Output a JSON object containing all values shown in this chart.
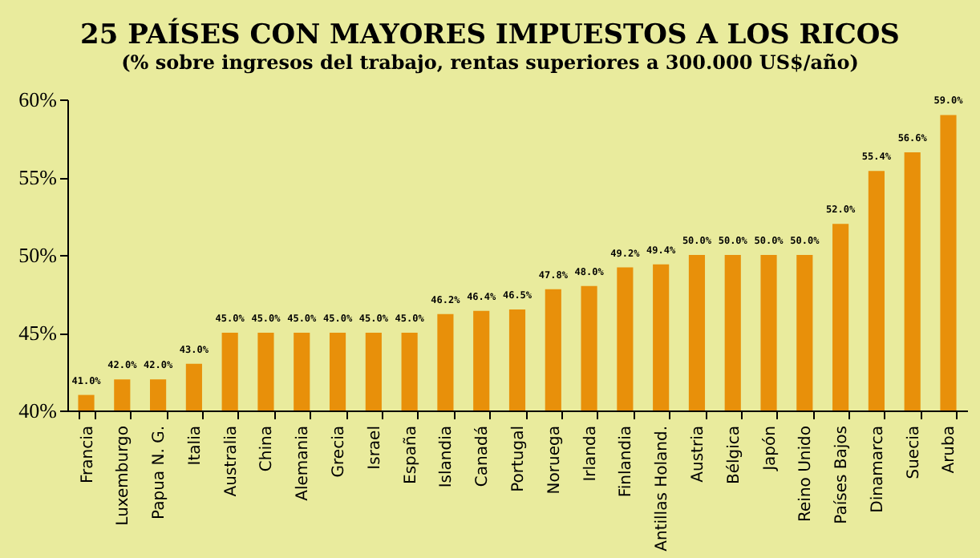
{
  "chart_data": {
    "type": "bar",
    "title": "25 PAÍSES CON MAYORES IMPUESTOS A LOS RICOS",
    "subtitle": "(% sobre ingresos del trabajo, rentas superiores a 300.000 US$/año)",
    "categories": [
      "Francia",
      "Luxemburgo",
      "Papua N. G.",
      "Italia",
      "Australia",
      "China",
      "Alemania",
      "Grecia",
      "Israel",
      "España",
      "Islandia",
      "Canadá",
      "Portugal",
      "Noruega",
      "Irlanda",
      "Finlandia",
      "Antillas Holand.",
      "Austria",
      "Bélgica",
      "Japón",
      "Reino Unido",
      "Países Bajos",
      "Dinamarca",
      "Suecia",
      "Aruba"
    ],
    "values": [
      41,
      42,
      42,
      43,
      45,
      45,
      45,
      45,
      45,
      45,
      46.2,
      46.4,
      46.5,
      47.8,
      48,
      49.2,
      49.4,
      50,
      50,
      50,
      50,
      52,
      55.4,
      56.6,
      59
    ],
    "value_labels": [
      "41.0%",
      "42.0%",
      "42.0%",
      "43.0%",
      "45.0%",
      "45.0%",
      "45.0%",
      "45.0%",
      "45.0%",
      "45.0%",
      "46.2%",
      "46.4%",
      "46.5%",
      "47.8%",
      "48.0%",
      "49.2%",
      "49.4%",
      "50.0%",
      "50.0%",
      "50.0%",
      "50.0%",
      "52.0%",
      "55.4%",
      "56.6%",
      "59.0%"
    ],
    "color": "#e8900a",
    "ylim": [
      40,
      60
    ],
    "yticks": [
      {
        "value": 40,
        "label": "40%"
      },
      {
        "value": 45,
        "label": "45%"
      },
      {
        "value": 50,
        "label": "50%"
      },
      {
        "value": 55,
        "label": "55%"
      },
      {
        "value": 60,
        "label": "60%"
      }
    ],
    "grid": false
  }
}
